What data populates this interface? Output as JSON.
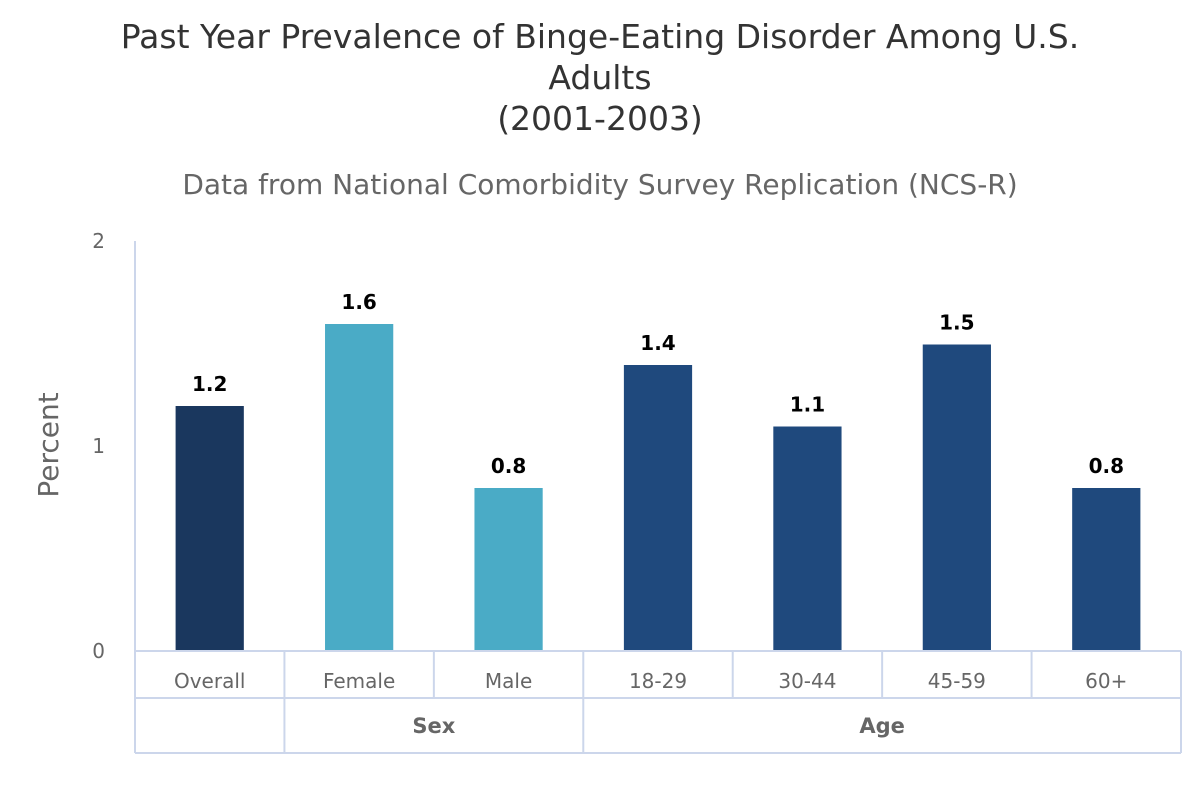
{
  "chart_data": {
    "type": "bar",
    "title_lines": [
      "Past Year Prevalence of Binge-Eating Disorder Among U.S.",
      "Adults",
      "(2001-2003)"
    ],
    "subtitle": "Data from National Comorbidity Survey Replication (NCS-R)",
    "ylabel": "Percent",
    "ylim": [
      0,
      2
    ],
    "yticks": [
      "0",
      "1",
      "2"
    ],
    "categories": [
      "Overall",
      "Female",
      "Male",
      "18-29",
      "30-44",
      "45-59",
      "60+"
    ],
    "values": [
      1.2,
      1.6,
      0.8,
      1.4,
      1.1,
      1.5,
      0.8
    ],
    "data_labels": [
      "1.2",
      "1.6",
      "0.8",
      "1.4",
      "1.1",
      "1.5",
      "0.8"
    ],
    "bar_colors": [
      "#1a375e",
      "#4aabc6",
      "#4aabc6",
      "#1f497d",
      "#1f497d",
      "#1f497d",
      "#1f497d"
    ],
    "groups": [
      {
        "label": "",
        "start": 0,
        "count": 1
      },
      {
        "label": "Sex",
        "start": 1,
        "count": 2
      },
      {
        "label": "Age",
        "start": 3,
        "count": 4
      }
    ],
    "grid": false,
    "legend": "none"
  }
}
